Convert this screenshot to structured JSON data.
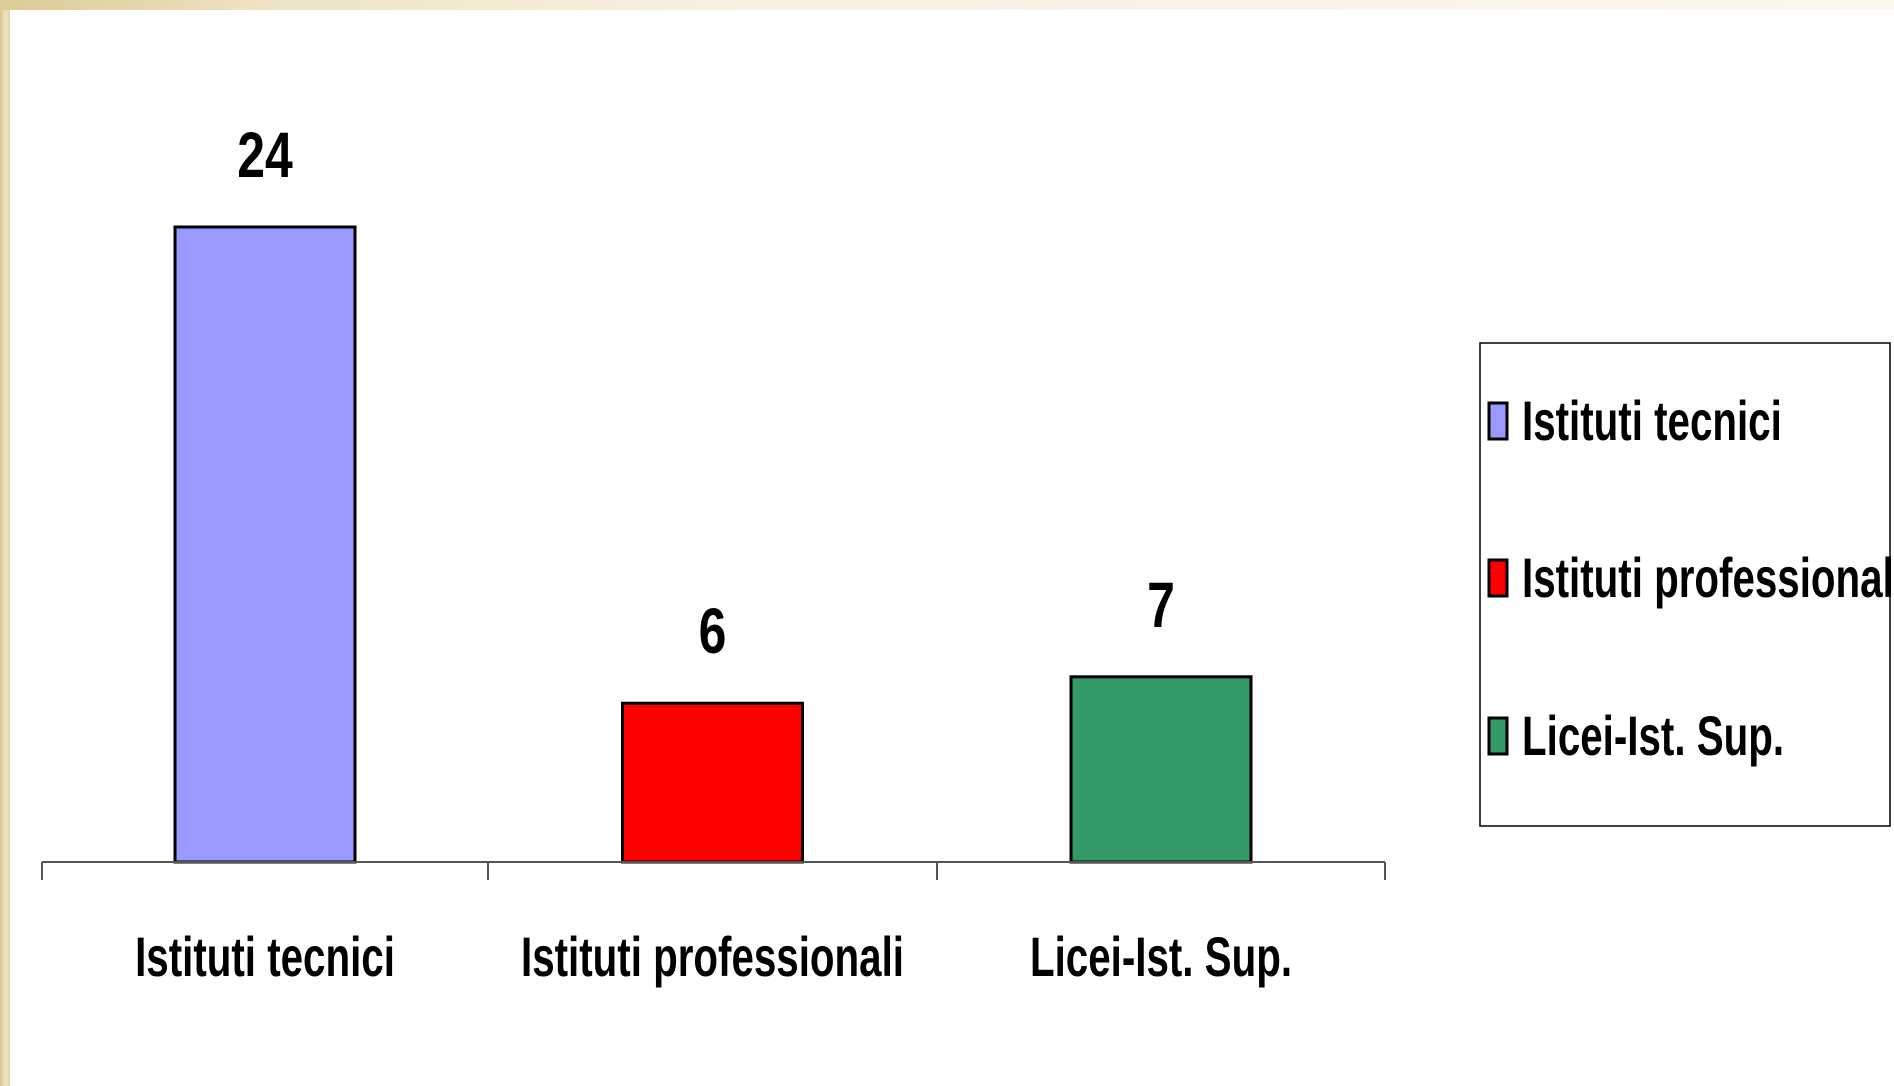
{
  "chart_data": {
    "type": "bar",
    "title": "",
    "xlabel": "",
    "ylabel": "",
    "categories": [
      "Istituti tecnici",
      "Istituti professionali",
      "Licei-Ist. Sup."
    ],
    "values": [
      24,
      6,
      7
    ],
    "ylim": [
      0,
      24
    ],
    "colors": [
      "#9999ff",
      "#ff0000",
      "#339966"
    ],
    "grid": false,
    "legend": {
      "position": "right",
      "entries": [
        "Istituti tecnici",
        "Istituti professionali",
        "Licei-Ist. Sup."
      ]
    }
  }
}
